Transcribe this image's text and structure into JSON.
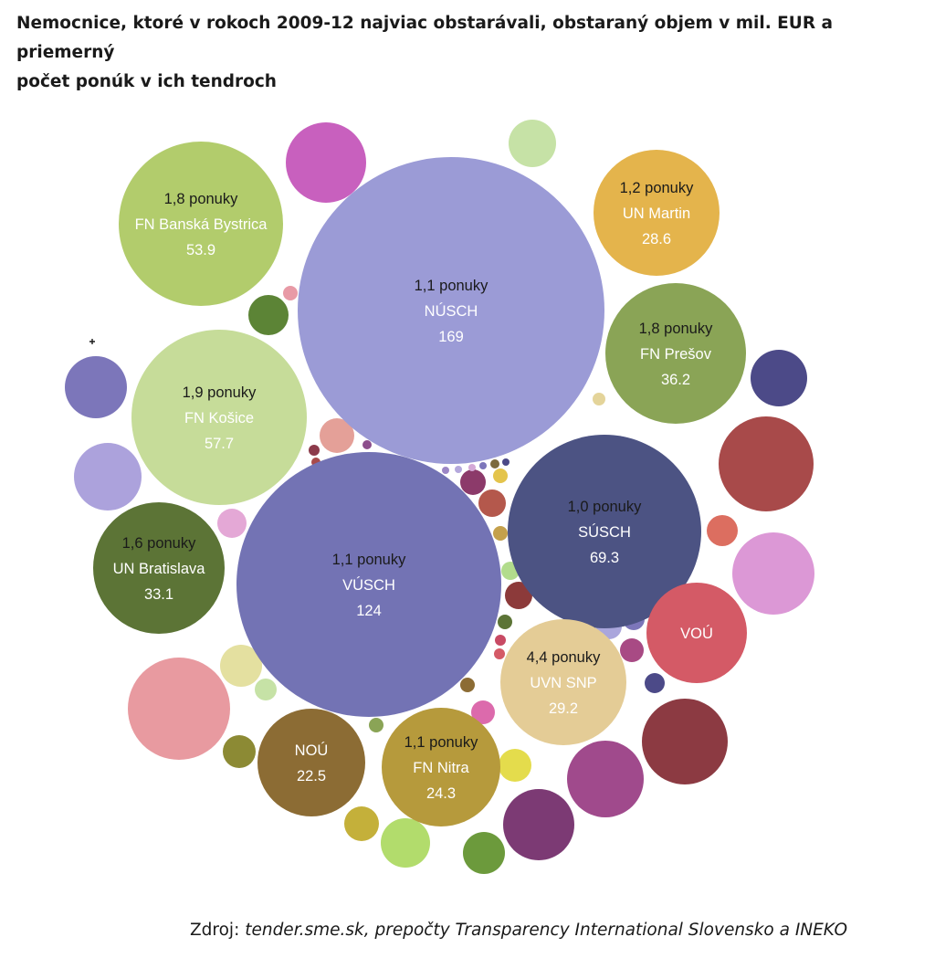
{
  "title_line1": "Nemocnice, ktoré v rokoch 2009-12 najviac obstarávali, obstaraný objem v mil. EUR a priemerný",
  "title_line2": "počet ponúk v ich tendroch",
  "source": {
    "prefix": "Zdroj: ",
    "italic": "tender.sme.sk,  prepočty  Transparency  International Slovensko  a INEKO"
  },
  "chart_data": {
    "type": "bubble",
    "value_unit": "mil. EUR",
    "series": [
      {
        "name": "NÚSCH",
        "value": 169,
        "offers": "1,1 ponuky",
        "color": "#9b9bd6"
      },
      {
        "name": "VÚSCH",
        "value": 124,
        "offers": "1,1 ponuky",
        "color": "#7373b4"
      },
      {
        "name": "SÚSCH",
        "value": 69.3,
        "offers": "1,0 ponuky",
        "color": "#4c5383"
      },
      {
        "name": "FN Košice",
        "value": 57.7,
        "offers": "1,9 ponuky",
        "color": "#c6dc99"
      },
      {
        "name": "FN Banská Bystrica",
        "value": 53.9,
        "offers": "1,8 ponuky",
        "color": "#b2cc6c"
      },
      {
        "name": "FN Prešov",
        "value": 36.2,
        "offers": "1,8 ponuky",
        "color": "#8aa456"
      },
      {
        "name": "UN Bratislava",
        "value": 33.1,
        "offers": "1,6 ponuky",
        "color": "#5c7436"
      },
      {
        "name": "UVN SNP",
        "value": 29.2,
        "offers": "4,4 ponuky",
        "color": "#e4cc96"
      },
      {
        "name": "UN Martin",
        "value": 28.6,
        "offers": "1,2 ponuky",
        "color": "#e4b44c"
      },
      {
        "name": "FN Nitra",
        "value": 24.3,
        "offers": "1,1 ponuky",
        "color": "#b69a3c"
      },
      {
        "name": "NOÚ",
        "value": 22.5,
        "offers": "",
        "color": "#8c6c34"
      },
      {
        "name": "VOÚ",
        "value": null,
        "offers": "",
        "color": "#d45a66"
      }
    ]
  }
}
